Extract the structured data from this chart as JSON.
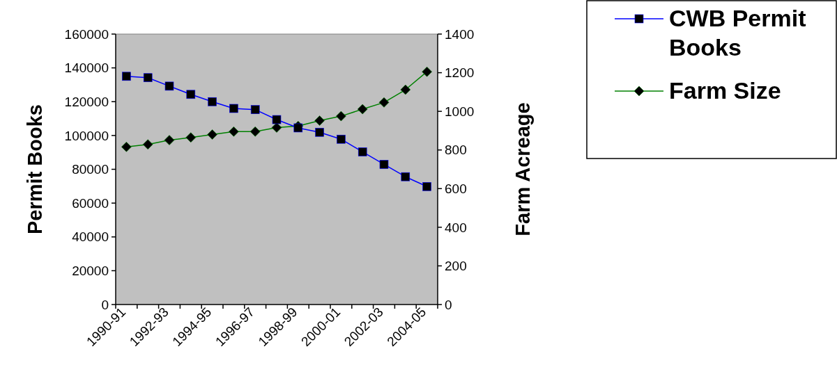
{
  "chart_data": {
    "type": "line",
    "categories": [
      "1990-91",
      null,
      "1992-93",
      null,
      "1994-95",
      null,
      "1996-97",
      null,
      "1998-99",
      null,
      "2000-01",
      null,
      "2002-03",
      null,
      "2004-05"
    ],
    "ylabel": "Permit Books",
    "y2label": "Farm Acreage",
    "ylim": [
      0,
      160000
    ],
    "yticks": [
      0,
      20000,
      40000,
      60000,
      80000,
      100000,
      120000,
      140000,
      160000
    ],
    "y2lim": [
      0,
      1400
    ],
    "y2ticks": [
      0,
      200,
      400,
      600,
      800,
      1000,
      1200,
      1400
    ],
    "legend": "right",
    "grid": false,
    "series": [
      {
        "name": "CWB Permit Books",
        "color": "#0000ff",
        "marker": "square",
        "values": [
          135000,
          134200,
          129200,
          124300,
          120000,
          116000,
          115300,
          109400,
          104500,
          101900,
          97800,
          90300,
          82900,
          75600,
          69800
        ]
      },
      {
        "name": "Farm Size",
        "color": "#008000",
        "marker": "diamond",
        "axis": "y2",
        "values": [
          816,
          829,
          851,
          865,
          880,
          895,
          895,
          916,
          924,
          952,
          975,
          1011,
          1046,
          1112,
          1205
        ]
      }
    ]
  }
}
